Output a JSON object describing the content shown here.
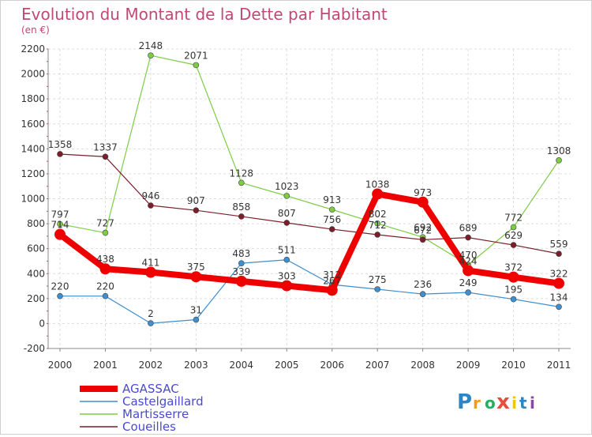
{
  "chart_data": {
    "type": "line",
    "title": "Evolution du Montant de la Dette par Habitant",
    "subtitle": "(en €)",
    "ylim": [
      -200,
      2200
    ],
    "yticks": [
      -200,
      0,
      200,
      400,
      600,
      800,
      1000,
      1200,
      1400,
      1600,
      1800,
      2000,
      2200
    ],
    "x": [
      "2000",
      "2001",
      "2002",
      "2003",
      "2004",
      "2005",
      "2006",
      "2007",
      "2008",
      "2009",
      "2010",
      "2011"
    ],
    "grid": true,
    "legend_position": "bottom-left",
    "series": [
      {
        "name": "AGASSAC",
        "color": "#ee0000",
        "values": [
          714,
          438,
          411,
          375,
          339,
          303,
          267,
          1038,
          973,
          424,
          372,
          322
        ]
      },
      {
        "name": "Castelgaillard",
        "color": "#3d8fcf",
        "values": [
          220,
          220,
          2,
          31,
          483,
          511,
          312,
          275,
          236,
          249,
          195,
          134
        ]
      },
      {
        "name": "Martisserre",
        "color": "#7dcc44",
        "values": [
          797,
          727,
          2148,
          2071,
          1128,
          1023,
          913,
          802,
          692,
          470,
          772,
          1308
        ]
      },
      {
        "name": "Coueilles",
        "color": "#7a1f2a",
        "values": [
          1358,
          1337,
          946,
          907,
          858,
          807,
          756,
          712,
          672,
          689,
          629,
          559
        ]
      }
    ]
  },
  "logo": {
    "text": "Proxiti",
    "colors": [
      "#2e86c1",
      "#f39c12",
      "#27ae60",
      "#e74c3c",
      "#f1c40f",
      "#2e86c1",
      "#8e44ad"
    ]
  }
}
